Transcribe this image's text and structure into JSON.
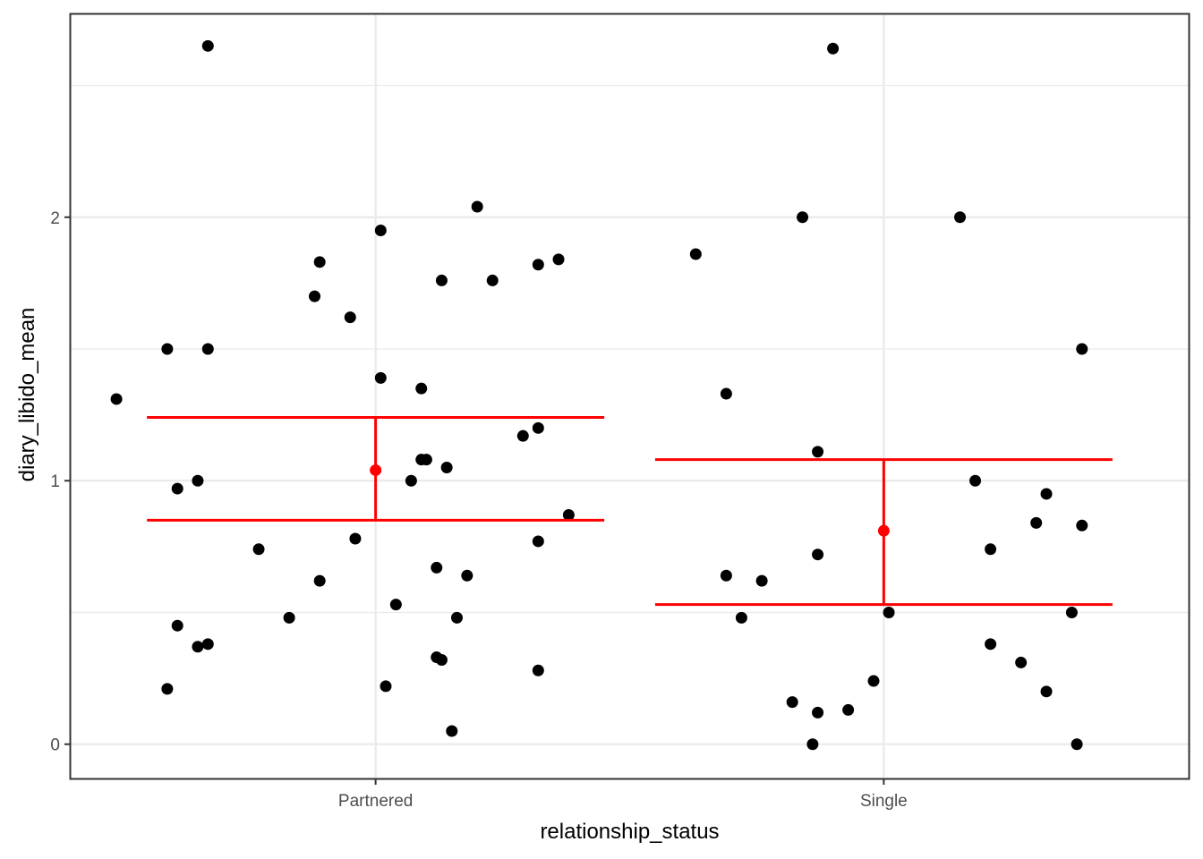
{
  "chart_data": {
    "type": "scatter",
    "title": "",
    "xlabel": "relationship_status",
    "ylabel": "diary_libido_mean",
    "categories": [
      "Partnered",
      "Single"
    ],
    "ylim": [
      -0.13,
      2.77
    ],
    "y_major_ticks": [
      0,
      1,
      2
    ],
    "y_major_tick_labels": [
      "0",
      "1",
      "2"
    ],
    "y_minor_ticks": [
      0.5,
      1.5,
      2.5
    ],
    "grid": true,
    "legend": "none",
    "point_color": "#000000",
    "summary_color": "#ff0000",
    "series": [
      {
        "category": "Partnered",
        "points": [
          {
            "x": 0.67,
            "y": 2.65
          },
          {
            "x": 0.49,
            "y": 1.31
          },
          {
            "x": 0.59,
            "y": 1.5
          },
          {
            "x": 0.67,
            "y": 1.5
          },
          {
            "x": 0.61,
            "y": 0.97
          },
          {
            "x": 0.65,
            "y": 1.0
          },
          {
            "x": 0.61,
            "y": 0.45
          },
          {
            "x": 0.65,
            "y": 0.37
          },
          {
            "x": 0.67,
            "y": 0.38
          },
          {
            "x": 0.59,
            "y": 0.21
          },
          {
            "x": 0.77,
            "y": 0.74
          },
          {
            "x": 0.83,
            "y": 0.48
          },
          {
            "x": 0.88,
            "y": 1.7
          },
          {
            "x": 0.89,
            "y": 1.83
          },
          {
            "x": 0.89,
            "y": 0.62
          },
          {
            "x": 0.95,
            "y": 1.62
          },
          {
            "x": 0.96,
            "y": 0.78
          },
          {
            "x": 1.01,
            "y": 1.95
          },
          {
            "x": 1.01,
            "y": 1.39
          },
          {
            "x": 1.02,
            "y": 0.22
          },
          {
            "x": 1.04,
            "y": 0.53
          },
          {
            "x": 1.07,
            "y": 1.0
          },
          {
            "x": 1.09,
            "y": 1.35
          },
          {
            "x": 1.09,
            "y": 1.08
          },
          {
            "x": 1.1,
            "y": 1.08
          },
          {
            "x": 1.12,
            "y": 0.67
          },
          {
            "x": 1.12,
            "y": 0.33
          },
          {
            "x": 1.13,
            "y": 0.32
          },
          {
            "x": 1.13,
            "y": 1.76
          },
          {
            "x": 1.14,
            "y": 1.05
          },
          {
            "x": 1.15,
            "y": 0.05
          },
          {
            "x": 1.16,
            "y": 0.48
          },
          {
            "x": 1.18,
            "y": 0.64
          },
          {
            "x": 1.2,
            "y": 2.04
          },
          {
            "x": 1.23,
            "y": 1.76
          },
          {
            "x": 1.29,
            "y": 1.17
          },
          {
            "x": 1.32,
            "y": 1.2
          },
          {
            "x": 1.32,
            "y": 1.82
          },
          {
            "x": 1.32,
            "y": 0.77
          },
          {
            "x": 1.32,
            "y": 0.28
          },
          {
            "x": 1.36,
            "y": 1.84
          },
          {
            "x": 1.38,
            "y": 0.87
          }
        ]
      },
      {
        "category": "Single",
        "points": [
          {
            "x": 1.63,
            "y": 1.86
          },
          {
            "x": 1.69,
            "y": 1.33
          },
          {
            "x": 1.69,
            "y": 0.64
          },
          {
            "x": 1.72,
            "y": 0.48
          },
          {
            "x": 1.76,
            "y": 0.62
          },
          {
            "x": 1.82,
            "y": 0.16
          },
          {
            "x": 1.84,
            "y": 2.0
          },
          {
            "x": 1.86,
            "y": 0.0
          },
          {
            "x": 1.87,
            "y": 0.12
          },
          {
            "x": 1.87,
            "y": 1.11
          },
          {
            "x": 1.87,
            "y": 0.72
          },
          {
            "x": 1.9,
            "y": 2.64
          },
          {
            "x": 1.93,
            "y": 0.13
          },
          {
            "x": 1.98,
            "y": 0.24
          },
          {
            "x": 2.01,
            "y": 0.5
          },
          {
            "x": 2.15,
            "y": 2.0
          },
          {
            "x": 2.18,
            "y": 1.0
          },
          {
            "x": 2.21,
            "y": 0.74
          },
          {
            "x": 2.21,
            "y": 0.38
          },
          {
            "x": 2.27,
            "y": 0.31
          },
          {
            "x": 2.3,
            "y": 0.84
          },
          {
            "x": 2.32,
            "y": 0.95
          },
          {
            "x": 2.32,
            "y": 0.2
          },
          {
            "x": 2.37,
            "y": 0.5
          },
          {
            "x": 2.38,
            "y": 0.0
          },
          {
            "x": 2.39,
            "y": 0.83
          },
          {
            "x": 2.39,
            "y": 1.5
          }
        ]
      }
    ],
    "summary": [
      {
        "category": "Partnered",
        "mean": 1.04,
        "ymin": 0.85,
        "ymax": 1.24,
        "errorbar_halfwidth": 0.45
      },
      {
        "category": "Single",
        "mean": 0.81,
        "ymin": 0.53,
        "ymax": 1.08,
        "errorbar_halfwidth": 0.45
      }
    ]
  }
}
